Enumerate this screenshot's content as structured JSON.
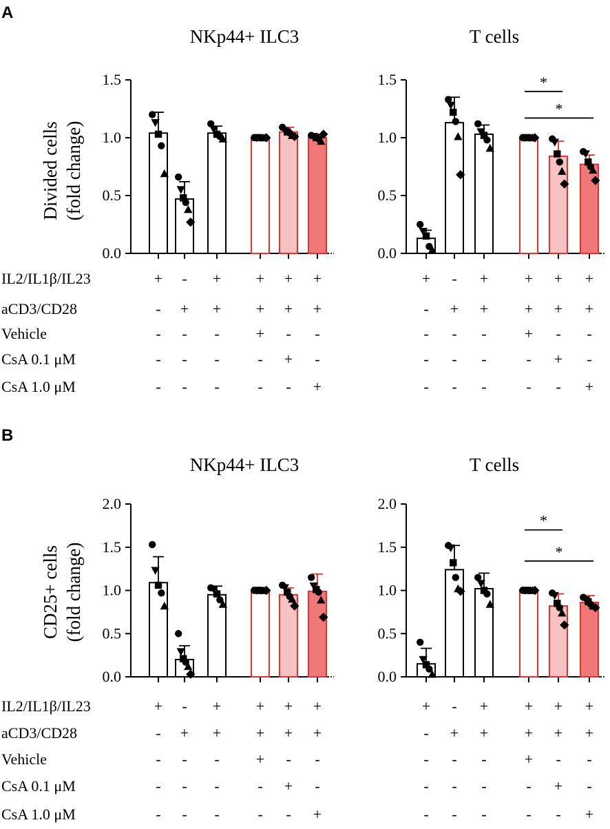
{
  "panels": [
    {
      "letter": "A",
      "ylabel_line1": "Divided cells",
      "ylabel_line2": "(fold change)",
      "ylim": [
        0,
        1.5
      ],
      "yticks": [
        "0.0",
        "0.5",
        "1.0",
        "1.5"
      ],
      "ytick_values": [
        0,
        0.5,
        1.0,
        1.5
      ]
    },
    {
      "letter": "B",
      "ylabel_line1": "CD25+ cells",
      "ylabel_line2": "(fold change)",
      "ylim": [
        0,
        2.0
      ],
      "yticks": [
        "0.0",
        "0.5",
        "1.0",
        "1.5",
        "2.0"
      ],
      "ytick_values": [
        0,
        0.5,
        1.0,
        1.5,
        2.0
      ]
    }
  ],
  "conditions": {
    "row_labels": [
      "IL2/IL1β/IL23",
      "aCD3/CD28",
      "Vehicle",
      "CsA 0.1 μM",
      "CsA 1.0 μM"
    ],
    "signs": [
      [
        "+",
        "-",
        "+",
        "+",
        "+",
        "+"
      ],
      [
        "-",
        "+",
        "+",
        "+",
        "+",
        "+"
      ],
      [
        "-",
        "-",
        "-",
        "+",
        "-",
        "-"
      ],
      [
        "-",
        "-",
        "-",
        "-",
        "+",
        "-"
      ],
      [
        "-",
        "-",
        "-",
        "-",
        "-",
        "+"
      ]
    ]
  },
  "colors": {
    "white_fill": "#ffffff",
    "light_red_fill": "#f7c2c2",
    "red_fill": "#f07878",
    "red_edge": "#e03030",
    "black": "#000000"
  },
  "chart_data": [
    {
      "type": "bar",
      "panel": "A",
      "title": "NKp44+ ILC3",
      "ylabel": "Divided cells (fold change)",
      "ylim": [
        0,
        1.5
      ],
      "conditions": [
        "1",
        "2",
        "3",
        "4",
        "5",
        "6"
      ],
      "values": [
        1.04,
        0.47,
        1.04,
        1.0,
        1.05,
        1.0
      ],
      "errors": [
        0.18,
        0.15,
        0.06,
        0.01,
        0.04,
        0.03
      ],
      "points": [
        [
          1.2,
          1.13,
          1.03,
          0.93,
          0.69
        ],
        [
          0.66,
          0.55,
          0.48,
          0.44,
          0.38,
          0.27
        ],
        [
          1.12,
          1.07,
          1.03,
          1.01,
          0.99
        ],
        [
          1.0,
          1.0,
          1.0,
          1.0,
          1.0,
          1.0
        ],
        [
          1.09,
          1.06,
          1.05,
          1.04,
          1.02,
          1.01
        ],
        [
          1.02,
          1.01,
          1.0,
          0.99,
          0.97,
          1.03
        ]
      ],
      "significance": []
    },
    {
      "type": "bar",
      "panel": "A",
      "title": "T cells",
      "ylabel": "Divided cells (fold change)",
      "ylim": [
        0,
        1.5
      ],
      "conditions": [
        "1",
        "2",
        "3",
        "4",
        "5",
        "6"
      ],
      "values": [
        0.13,
        1.13,
        1.03,
        1.0,
        0.84,
        0.77
      ],
      "errors": [
        0.07,
        0.22,
        0.08,
        0.01,
        0.13,
        0.08
      ],
      "points": [
        [
          0.25,
          0.19,
          0.15,
          0.06,
          0.03
        ],
        [
          1.33,
          1.28,
          1.22,
          1.14,
          1.01,
          0.68
        ],
        [
          1.12,
          1.05,
          1.02,
          0.98,
          0.91
        ],
        [
          1.0,
          1.0,
          1.0,
          1.0,
          1.0,
          1.0
        ],
        [
          0.99,
          0.96,
          0.86,
          0.79,
          0.71,
          0.6
        ],
        [
          0.88,
          0.86,
          0.79,
          0.75,
          0.72,
          0.63
        ]
      ],
      "significance": [
        {
          "from": 3,
          "to": 4,
          "level": 1.4,
          "label": "*"
        },
        {
          "from": 3,
          "to": 5,
          "level": 1.17,
          "label": "*"
        }
      ]
    },
    {
      "type": "bar",
      "panel": "B",
      "title": "NKp44+ ILC3",
      "ylabel": "CD25+ cells (fold change)",
      "ylim": [
        0,
        2.0
      ],
      "conditions": [
        "1",
        "2",
        "3",
        "4",
        "5",
        "6"
      ],
      "values": [
        1.09,
        0.2,
        0.95,
        1.0,
        0.95,
        0.99
      ],
      "errors": [
        0.3,
        0.16,
        0.1,
        0.01,
        0.08,
        0.2
      ],
      "points": [
        [
          1.53,
          1.23,
          1.06,
          0.97,
          0.82
        ],
        [
          0.5,
          0.29,
          0.21,
          0.17,
          0.12,
          0.03
        ],
        [
          1.03,
          1.01,
          0.96,
          0.89,
          0.84
        ],
        [
          1.0,
          1.0,
          1.0,
          1.0,
          1.0,
          1.0
        ],
        [
          1.06,
          1.03,
          0.98,
          0.93,
          0.9,
          0.82
        ],
        [
          1.15,
          1.05,
          1.01,
          0.98,
          0.89,
          0.69
        ]
      ],
      "significance": []
    },
    {
      "type": "bar",
      "panel": "B",
      "title": "T cells",
      "ylabel": "CD25+ cells (fold change)",
      "ylim": [
        0,
        2.0
      ],
      "conditions": [
        "1",
        "2",
        "3",
        "4",
        "5",
        "6"
      ],
      "values": [
        0.15,
        1.24,
        1.02,
        1.0,
        0.82,
        0.86
      ],
      "errors": [
        0.18,
        0.28,
        0.18,
        0.01,
        0.14,
        0.08
      ],
      "points": [
        [
          0.4,
          0.2,
          0.14,
          0.09,
          0.03
        ],
        [
          1.52,
          1.49,
          1.32,
          1.15,
          1.02,
          0.99
        ],
        [
          1.15,
          1.08,
          1.0,
          0.96,
          0.84
        ],
        [
          1.0,
          1.0,
          1.0,
          1.0,
          1.0,
          1.0
        ],
        [
          0.97,
          0.94,
          0.85,
          0.8,
          0.74,
          0.6
        ],
        [
          0.92,
          0.89,
          0.87,
          0.84,
          0.82,
          0.8
        ]
      ],
      "significance": [
        {
          "from": 3,
          "to": 4,
          "level": 1.7,
          "label": "*"
        },
        {
          "from": 3,
          "to": 5,
          "level": 1.34,
          "label": "*"
        }
      ]
    }
  ]
}
